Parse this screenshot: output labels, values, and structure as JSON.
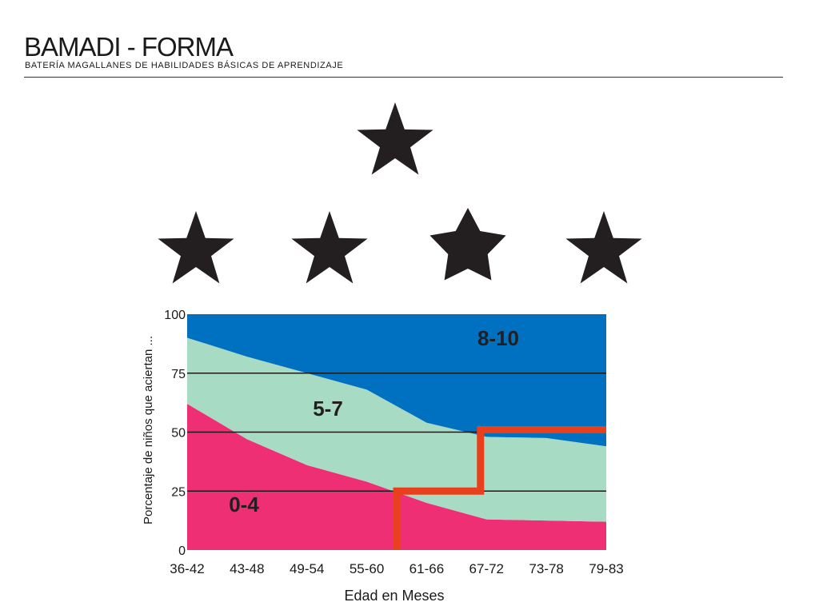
{
  "header": {
    "title": "BAMADI - FORMA",
    "subtitle": "BATERÍA MAGALLANES DE HABILIDADES BÁSICAS DE APRENDIZAJE"
  },
  "stimulus": {
    "shape": "star",
    "count": 5,
    "color": "#231f20"
  },
  "chart_data": {
    "type": "area",
    "stacked": true,
    "xlabel": "Edad en Meses",
    "ylabel": "Porcentaje de niños que aciertan ...",
    "categories": [
      "36-42",
      "43-48",
      "49-54",
      "55-60",
      "61-66",
      "67-72",
      "73-78",
      "79-83"
    ],
    "ylim": [
      0,
      100
    ],
    "yticks": [
      0,
      25,
      50,
      75,
      100
    ],
    "grid": true,
    "series": [
      {
        "name": "0-4",
        "values": [
          62,
          47,
          36,
          29,
          20,
          13,
          12.5,
          12
        ],
        "color": "#ef2f74"
      },
      {
        "name": "5-7",
        "values": [
          28,
          35,
          39,
          39,
          34,
          35,
          35,
          32
        ],
        "color": "#a8dbc4"
      },
      {
        "name": "8-10",
        "values": [
          10,
          18,
          25,
          32,
          46,
          52,
          52.5,
          56
        ],
        "color": "#0070c0"
      }
    ],
    "reference_line": {
      "color": "#e8401c",
      "points": [
        [
          3.5,
          0
        ],
        [
          3.5,
          25
        ],
        [
          4.9,
          25
        ],
        [
          4.9,
          51
        ],
        [
          7,
          51
        ]
      ]
    }
  }
}
